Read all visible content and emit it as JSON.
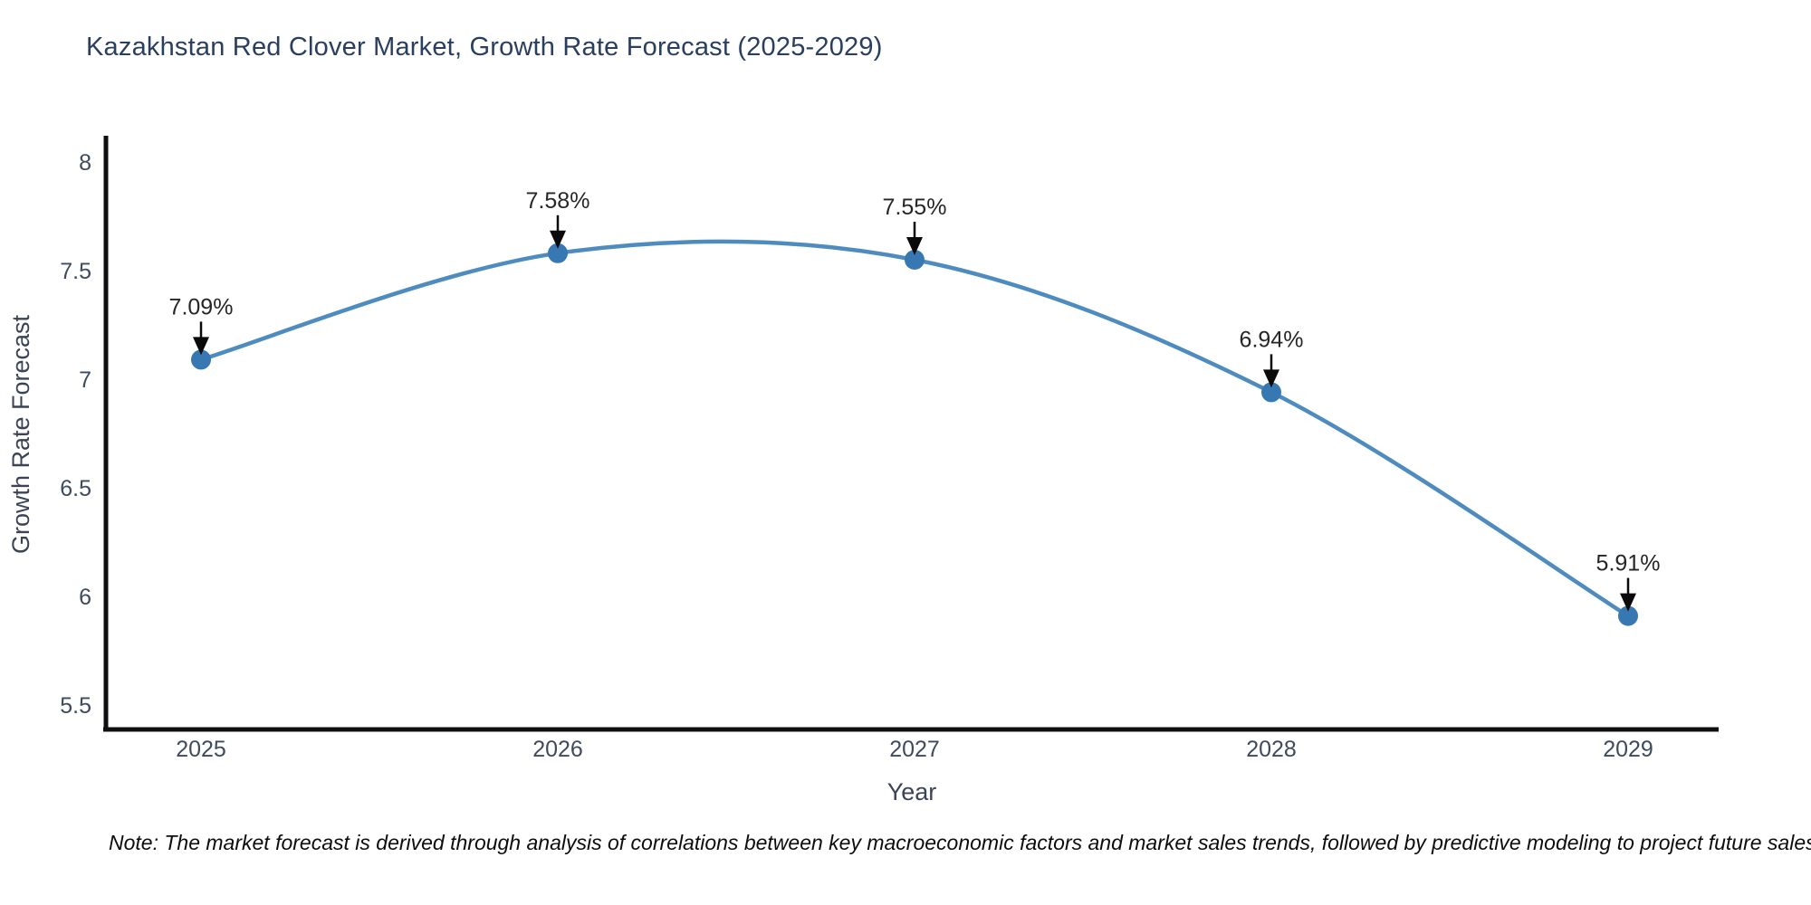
{
  "header": {
    "title": "Kazakhstan Red Clover Market, Growth Rate Forecast (2025-2029)"
  },
  "footnote": {
    "text": "Note: The market forecast is derived through analysis of correlations between key macroeconomic factors and market sales trends, followed by predictive modeling to project future sales"
  },
  "chart_data": {
    "type": "line",
    "title": "Kazakhstan Red Clover Market, Growth Rate Forecast (2025-2029)",
    "xlabel": "Year",
    "ylabel": "Growth Rate Forecast",
    "categories": [
      "2025",
      "2026",
      "2027",
      "2028",
      "2029"
    ],
    "values": [
      7.09,
      7.58,
      7.55,
      6.94,
      5.91
    ],
    "point_labels": [
      "7.09%",
      "7.58%",
      "7.55%",
      "6.94%",
      "5.91%"
    ],
    "ylim": [
      5.5,
      8
    ],
    "yticks": [
      "8",
      "7.5",
      "7",
      "6.5",
      "6",
      "5.5"
    ],
    "ytick_values": [
      8,
      7.5,
      7,
      6.5,
      6,
      5.5
    ],
    "grid": false,
    "legend": "none",
    "line_shape": "spline",
    "annotation_style": "black-down-arrow",
    "colors": {
      "line": "#4e8cbf",
      "marker": "#3878b2",
      "axis": "#0f0f0f",
      "title_text": "#2a3f5f",
      "tick_text": "#3d4b5c",
      "axis_label_text": "#3b4455",
      "annotation_text": "#262626",
      "annotation_arrow": "#0a0a0a",
      "background": "#ffffff"
    }
  }
}
